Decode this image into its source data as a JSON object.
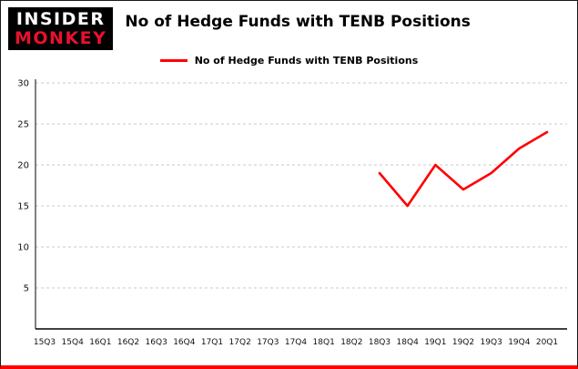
{
  "logo": {
    "line1": "INSIDER",
    "line2": "MONKEY"
  },
  "header": {
    "title": "No of Hedge Funds with TENB Positions"
  },
  "legend": {
    "label": "No of Hedge Funds with TENB Positions",
    "color": "#ff0000"
  },
  "colors": {
    "line": "#ff0000",
    "grid": "#c9c9c9",
    "axis": "#000000",
    "bottom_bar": "#fe0000",
    "logo_bg": "#000000",
    "logo_top_text": "#ffffff",
    "logo_bottom_text": "#e8112d"
  },
  "chart_data": {
    "type": "line",
    "title": "No of Hedge Funds with TENB Positions",
    "categories": [
      "15Q3",
      "15Q4",
      "16Q1",
      "16Q2",
      "16Q3",
      "16Q4",
      "17Q1",
      "17Q2",
      "17Q3",
      "17Q4",
      "18Q1",
      "18Q2",
      "18Q3",
      "18Q4",
      "19Q1",
      "19Q2",
      "19Q3",
      "19Q4",
      "20Q1"
    ],
    "series": [
      {
        "name": "No of Hedge Funds with TENB Positions",
        "color": "#ff0000",
        "values": [
          null,
          null,
          null,
          null,
          null,
          null,
          null,
          null,
          null,
          null,
          null,
          null,
          19,
          15,
          20,
          17,
          19,
          22,
          24
        ]
      }
    ],
    "xlabel": "",
    "ylabel": "",
    "ylim": [
      0,
      30
    ],
    "yticks": [
      5,
      10,
      15,
      20,
      25,
      30
    ],
    "grid": true,
    "legend_position": "top-center"
  }
}
